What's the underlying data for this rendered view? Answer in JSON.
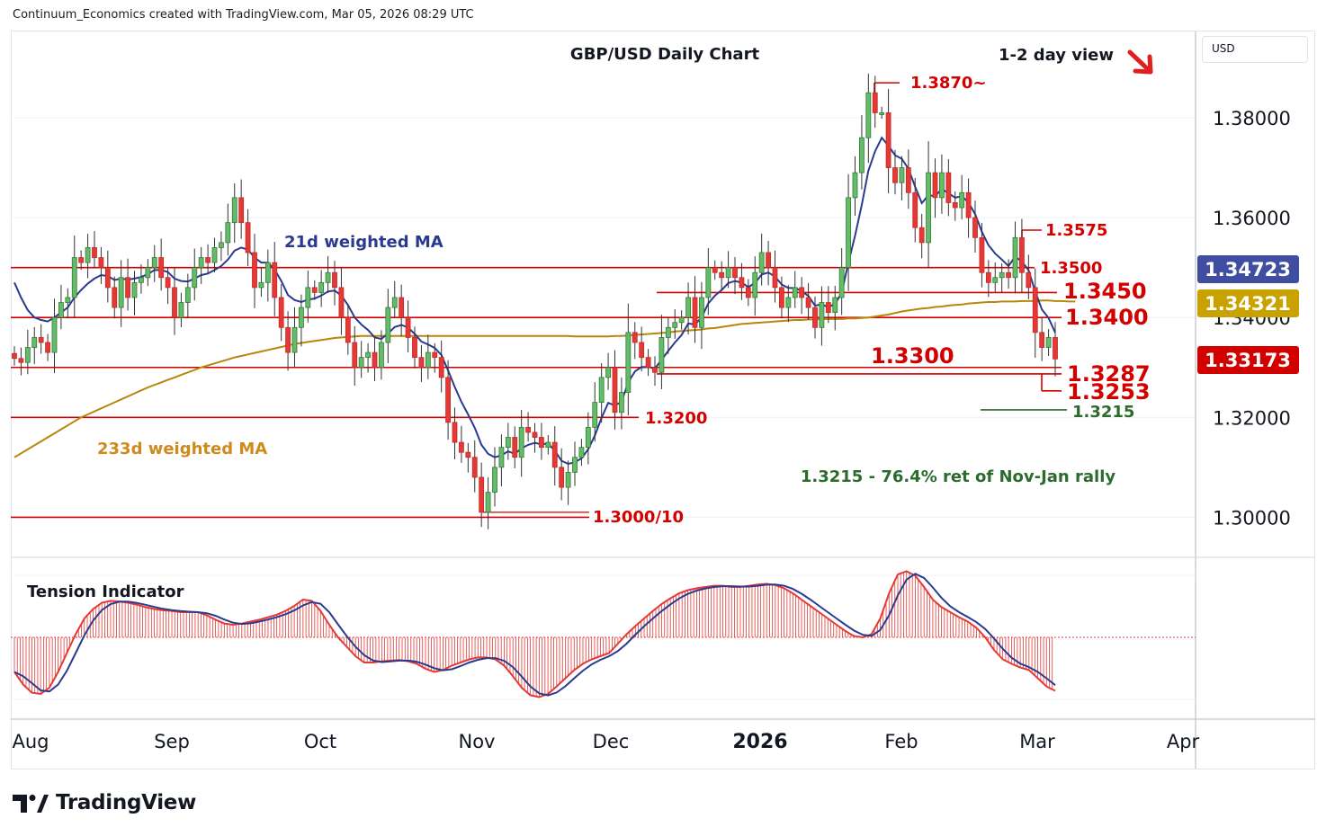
{
  "header": "Continuum_Economics created with TradingView.com, Mar 05, 2026 08:29 UTC",
  "chart_data": {
    "type": "candlestick",
    "title": "GBP/USD Daily Chart",
    "view": "1-2 day view",
    "view_arrow": "down-right",
    "currency_button": "USD",
    "y_axis": {
      "ticks": [
        "1.38000",
        "1.36000",
        "1.34000",
        "1.32000",
        "1.30000"
      ],
      "tick_values": [
        1.38,
        1.36,
        1.34,
        1.32,
        1.3
      ],
      "range": [
        1.2925,
        1.395
      ]
    },
    "x_axis": {
      "labels": [
        "Aug",
        "Sep",
        "Oct",
        "Nov",
        "Dec",
        "2026",
        "Feb",
        "Mar",
        "Apr"
      ],
      "bold": [
        "2026"
      ]
    },
    "price_tags": [
      {
        "label": "1.34723",
        "value": 1.34723,
        "bg": "#3f4ea0",
        "fg": "#ffffff"
      },
      {
        "label": "1.34321",
        "value": 1.34321,
        "bg": "#c9a200",
        "fg": "#ffffff"
      },
      {
        "label": "1.33173",
        "value": 1.33173,
        "bg": "#d30000",
        "fg": "#ffffff"
      }
    ],
    "levels": [
      {
        "label": "1.3870~",
        "value": 1.387
      },
      {
        "label": "1.3575",
        "value": 1.3575
      },
      {
        "label": "1.3500",
        "value": 1.35
      },
      {
        "label": "1.3450",
        "value": 1.345
      },
      {
        "label": "1.3400",
        "value": 1.34
      },
      {
        "label": "1.3300",
        "value": 1.33
      },
      {
        "label": "1.3287",
        "value": 1.3287
      },
      {
        "label": "1.3253",
        "value": 1.3253
      },
      {
        "label": "1.3200",
        "value": 1.32
      },
      {
        "label": "1.3000/10",
        "value": 1.3
      }
    ],
    "fib_level": {
      "label": "1.3215",
      "value": 1.3215
    },
    "annotation": "1.3215 - 76.4% ret of Nov-Jan rally",
    "ma_labels": {
      "ma21": "21d weighted MA",
      "ma233": "233d weighted MA"
    },
    "closes": [
      1.3318,
      1.331,
      1.334,
      1.336,
      1.335,
      1.333,
      1.34,
      1.343,
      1.344,
      1.352,
      1.351,
      1.354,
      1.352,
      1.35,
      1.346,
      1.342,
      1.348,
      1.344,
      1.347,
      1.348,
      1.35,
      1.352,
      1.348,
      1.346,
      1.34,
      1.343,
      1.346,
      1.35,
      1.352,
      1.351,
      1.354,
      1.355,
      1.359,
      1.364,
      1.359,
      1.353,
      1.346,
      1.347,
      1.351,
      1.344,
      1.338,
      1.333,
      1.338,
      1.342,
      1.346,
      1.345,
      1.347,
      1.349,
      1.346,
      1.34,
      1.335,
      1.33,
      1.332,
      1.333,
      1.33,
      1.335,
      1.342,
      1.344,
      1.34,
      1.336,
      1.332,
      1.33,
      1.333,
      1.332,
      1.328,
      1.319,
      1.315,
      1.313,
      1.312,
      1.308,
      1.301,
      1.305,
      1.31,
      1.314,
      1.316,
      1.312,
      1.318,
      1.317,
      1.316,
      1.314,
      1.315,
      1.31,
      1.306,
      1.309,
      1.312,
      1.314,
      1.318,
      1.323,
      1.328,
      1.33,
      1.321,
      1.325,
      1.337,
      1.335,
      1.332,
      1.33,
      1.329,
      1.336,
      1.338,
      1.339,
      1.34,
      1.344,
      1.338,
      1.344,
      1.35,
      1.349,
      1.348,
      1.35,
      1.348,
      1.346,
      1.344,
      1.349,
      1.353,
      1.35,
      1.346,
      1.342,
      1.344,
      1.346,
      1.344,
      1.342,
      1.338,
      1.343,
      1.341,
      1.344,
      1.35,
      1.364,
      1.369,
      1.376,
      1.385,
      1.381,
      1.381,
      1.37,
      1.367,
      1.37,
      1.365,
      1.358,
      1.355,
      1.369,
      1.364,
      1.369,
      1.363,
      1.362,
      1.365,
      1.36,
      1.356,
      1.349,
      1.347,
      1.348,
      1.349,
      1.348,
      1.356,
      1.349,
      1.346,
      1.337,
      1.334,
      1.336,
      1.3317
    ],
    "ma21": [
      1.347,
      1.344,
      1.3415,
      1.34,
      1.3395,
      1.3392,
      1.34,
      1.341,
      1.342,
      1.344,
      1.3455,
      1.3468,
      1.3478,
      1.3485,
      1.3483,
      1.3475,
      1.3478,
      1.3476,
      1.3478,
      1.3481,
      1.3487,
      1.3495,
      1.3495,
      1.3491,
      1.3478,
      1.3473,
      1.3472,
      1.3478,
      1.3485,
      1.3488,
      1.3495,
      1.3503,
      1.3516,
      1.3534,
      1.354,
      1.3536,
      1.352,
      1.351,
      1.351,
      1.3496,
      1.3473,
      1.3445,
      1.3435,
      1.3431,
      1.3436,
      1.3438,
      1.3444,
      1.3452,
      1.3454,
      1.3444,
      1.3425,
      1.34,
      1.3386,
      1.3375,
      1.336,
      1.3357,
      1.3368,
      1.3381,
      1.3385,
      1.338,
      1.3367,
      1.3352,
      1.3346,
      1.3339,
      1.3325,
      1.3294,
      1.3261,
      1.3231,
      1.3206,
      1.3179,
      1.3145,
      1.3127,
      1.312,
      1.3124,
      1.3132,
      1.3127,
      1.3138,
      1.3145,
      1.3149,
      1.3146,
      1.3148,
      1.3133,
      1.3113,
      1.3107,
      1.311,
      1.3118,
      1.3136,
      1.3164,
      1.3199,
      1.3229,
      1.3224,
      1.3231,
      1.327,
      1.3292,
      1.3301,
      1.3301,
      1.3298,
      1.3315,
      1.3333,
      1.335,
      1.3365,
      1.3388,
      1.3386,
      1.34,
      1.3428,
      1.3444,
      1.3455,
      1.3469,
      1.3473,
      1.347,
      1.3461,
      1.3469,
      1.3486,
      1.349,
      1.3482,
      1.3466,
      1.3459,
      1.3459,
      1.3453,
      1.3443,
      1.3424,
      1.3426,
      1.3421,
      1.3427,
      1.345,
      1.351,
      1.3564,
      1.3625,
      1.3694,
      1.3733,
      1.376,
      1.3744,
      1.3725,
      1.3718,
      1.3698,
      1.3662,
      1.3629,
      1.3645,
      1.3643,
      1.3657,
      1.3649,
      1.364,
      1.3643,
      1.363,
      1.3607,
      1.3572,
      1.3545,
      1.3528,
      1.3516,
      1.3503,
      1.3522,
      1.3512,
      1.3495,
      1.3452,
      1.3416,
      1.3399,
      1.337
    ],
    "ma233": [
      1.312,
      1.3128,
      1.3136,
      1.3144,
      1.3152,
      1.316,
      1.3168,
      1.3176,
      1.3184,
      1.3192,
      1.32,
      1.3206,
      1.3212,
      1.3218,
      1.3224,
      1.323,
      1.3236,
      1.3242,
      1.3248,
      1.3254,
      1.326,
      1.3265,
      1.327,
      1.3275,
      1.328,
      1.3285,
      1.329,
      1.3295,
      1.33,
      1.3304,
      1.3308,
      1.3312,
      1.3316,
      1.332,
      1.3323,
      1.3326,
      1.3329,
      1.3332,
      1.3335,
      1.3338,
      1.3341,
      1.3344,
      1.3347,
      1.3349,
      1.3351,
      1.3353,
      1.3355,
      1.3357,
      1.3359,
      1.336,
      1.3361,
      1.3362,
      1.3363,
      1.3363,
      1.3363,
      1.3363,
      1.3363,
      1.3363,
      1.3363,
      1.3363,
      1.3363,
      1.3363,
      1.3363,
      1.3363,
      1.3363,
      1.3363,
      1.3363,
      1.3363,
      1.3363,
      1.3363,
      1.3363,
      1.3363,
      1.3363,
      1.3363,
      1.3363,
      1.3363,
      1.3363,
      1.3363,
      1.3363,
      1.3363,
      1.3363,
      1.3363,
      1.3363,
      1.3363,
      1.3362,
      1.3362,
      1.3362,
      1.3362,
      1.3362,
      1.3362,
      1.3363,
      1.3363,
      1.3364,
      1.3365,
      1.3366,
      1.3367,
      1.3368,
      1.3369,
      1.337,
      1.3372,
      1.3373,
      1.3374,
      1.3375,
      1.3376,
      1.3378,
      1.3379,
      1.3381,
      1.3383,
      1.3385,
      1.3387,
      1.3388,
      1.3389,
      1.339,
      1.3391,
      1.3392,
      1.3393,
      1.3394,
      1.3395,
      1.3395,
      1.3396,
      1.3396,
      1.3397,
      1.3397,
      1.3397,
      1.3397,
      1.3398,
      1.3398,
      1.3399,
      1.34,
      1.3402,
      1.3404,
      1.3406,
      1.3409,
      1.3412,
      1.3414,
      1.3416,
      1.3418,
      1.3419,
      1.3421,
      1.3422,
      1.3424,
      1.3425,
      1.3426,
      1.3428,
      1.3429,
      1.343,
      1.3431,
      1.3431,
      1.3432,
      1.3432,
      1.3432,
      1.3433,
      1.3433,
      1.3433,
      1.3434,
      1.3434,
      1.3433,
      1.3433,
      1.3432,
      1.3432
    ],
    "tension_indicator": {
      "label": "Tension Indicator",
      "values": [
        -0.55,
        -0.75,
        -0.88,
        -0.9,
        -0.8,
        -0.55,
        -0.25,
        0.05,
        0.3,
        0.45,
        0.55,
        0.58,
        0.57,
        0.55,
        0.52,
        0.48,
        0.45,
        0.43,
        0.42,
        0.4,
        0.4,
        0.4,
        0.35,
        0.28,
        0.22,
        0.2,
        0.22,
        0.25,
        0.28,
        0.32,
        0.36,
        0.42,
        0.5,
        0.6,
        0.58,
        0.42,
        0.2,
        0.0,
        -0.15,
        -0.3,
        -0.4,
        -0.4,
        -0.38,
        -0.37,
        -0.36,
        -0.38,
        -0.42,
        -0.5,
        -0.55,
        -0.52,
        -0.45,
        -0.4,
        -0.35,
        -0.32,
        -0.32,
        -0.35,
        -0.45,
        -0.62,
        -0.8,
        -0.92,
        -0.95,
        -0.9,
        -0.78,
        -0.65,
        -0.52,
        -0.42,
        -0.35,
        -0.3,
        -0.25,
        -0.1,
        0.05,
        0.18,
        0.3,
        0.42,
        0.53,
        0.62,
        0.7,
        0.75,
        0.78,
        0.8,
        0.82,
        0.82,
        0.8,
        0.8,
        0.82,
        0.84,
        0.85,
        0.83,
        0.78,
        0.7,
        0.6,
        0.5,
        0.4,
        0.3,
        0.2,
        0.1,
        0.02,
        0.0,
        0.05,
        0.3,
        0.7,
        1.0,
        1.05,
        0.98,
        0.8,
        0.6,
        0.48,
        0.4,
        0.32,
        0.25,
        0.15,
        0.0,
        -0.2,
        -0.35,
        -0.42,
        -0.48,
        -0.52,
        -0.65,
        -0.78,
        -0.85
      ]
    }
  }
}
